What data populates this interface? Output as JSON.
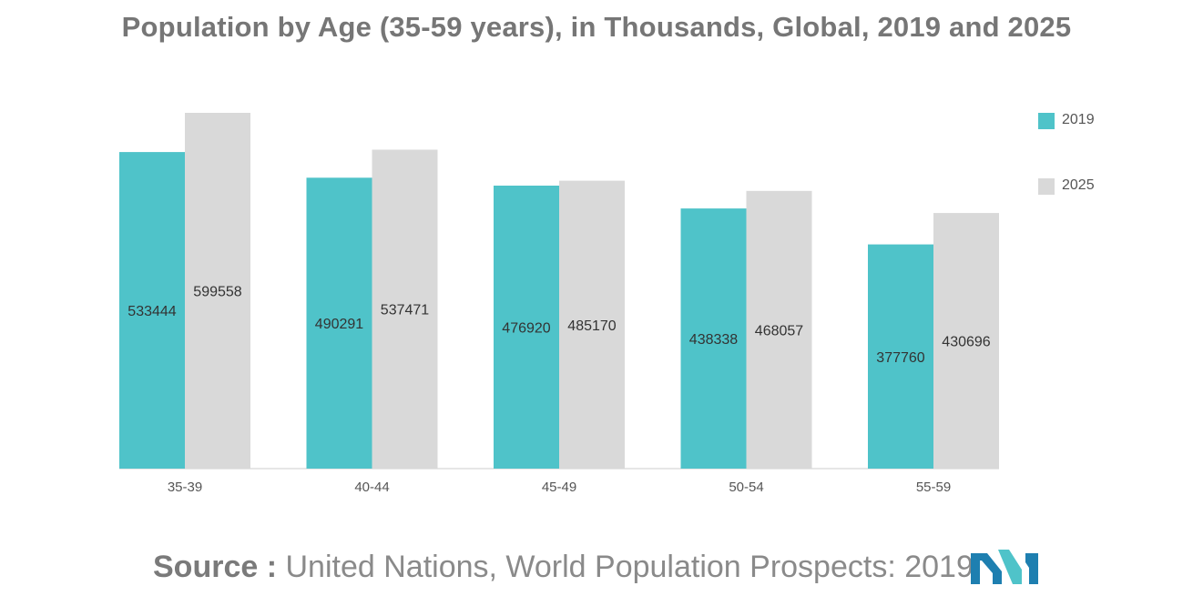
{
  "chart_data": {
    "type": "bar",
    "title": "Population by Age (35-59 years), in Thousands, Global, 2019 and 2025",
    "categories": [
      "35-39",
      "40-44",
      "45-49",
      "50-54",
      "55-59"
    ],
    "series": [
      {
        "name": "2019",
        "values": [
          533444,
          490291,
          476920,
          438338,
          377760
        ],
        "color": "#4fc3c9"
      },
      {
        "name": "2025",
        "values": [
          599558,
          537471,
          485170,
          468057,
          430696
        ],
        "color": "#d9d9d9"
      }
    ],
    "legend_position": "top-right",
    "grid": false,
    "data_labels": true
  },
  "source": {
    "prefix": "Source :",
    "text": "United Nations, World Population Prospects: 2019"
  },
  "logo": {
    "icon": "mordor-logo-icon",
    "colors": [
      "#1e7fb0",
      "#4fc3c9"
    ]
  }
}
